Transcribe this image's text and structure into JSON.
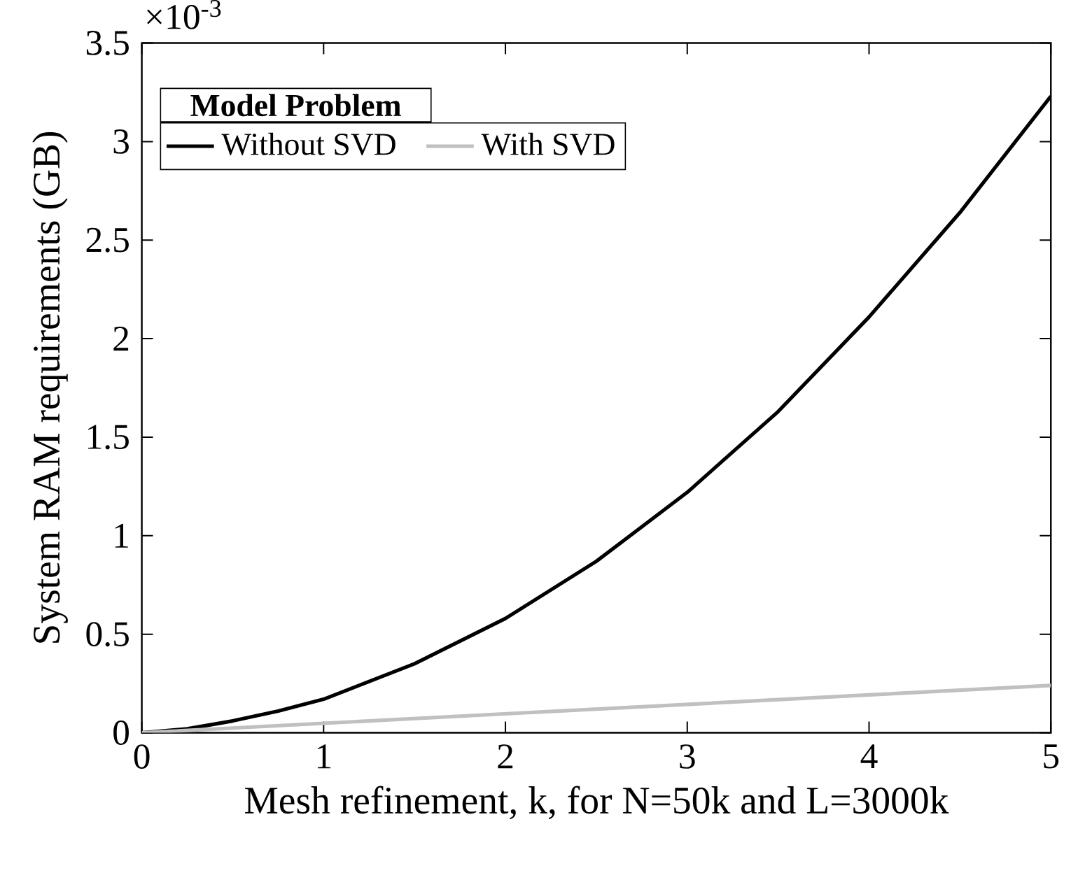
{
  "chart_data": {
    "type": "line",
    "xlabel": "Mesh refinement, k, for N=50k and L=3000k",
    "ylabel": "System RAM requirements (GB)",
    "legend_title": "Model Problem",
    "annotations": [
      "×10$^{-3}$"
    ],
    "xlim": [
      0,
      5
    ],
    "ylim": [
      0,
      3.5
    ],
    "xticks": [
      0,
      1,
      2,
      3,
      4,
      5
    ],
    "yticks": [
      0,
      0.5,
      1,
      1.5,
      2,
      2.5,
      3,
      3.5
    ],
    "legend": "top left",
    "grid": false,
    "series": [
      {
        "name": "Without SVD",
        "color": "#000000",
        "x": [
          0,
          0.25,
          0.5,
          0.75,
          1,
          1.5,
          2,
          2.5,
          3,
          3.5,
          4,
          4.5,
          5
        ],
        "values": [
          0,
          0.02,
          0.06,
          0.11,
          0.17,
          0.35,
          0.58,
          0.87,
          1.22,
          1.63,
          2.11,
          2.64,
          3.23
        ]
      },
      {
        "name": "With SVD",
        "color": "#c0c0c0",
        "x": [
          0,
          1,
          2,
          3,
          4,
          5
        ],
        "values": [
          0,
          0.048,
          0.096,
          0.144,
          0.192,
          0.24
        ]
      }
    ]
  }
}
